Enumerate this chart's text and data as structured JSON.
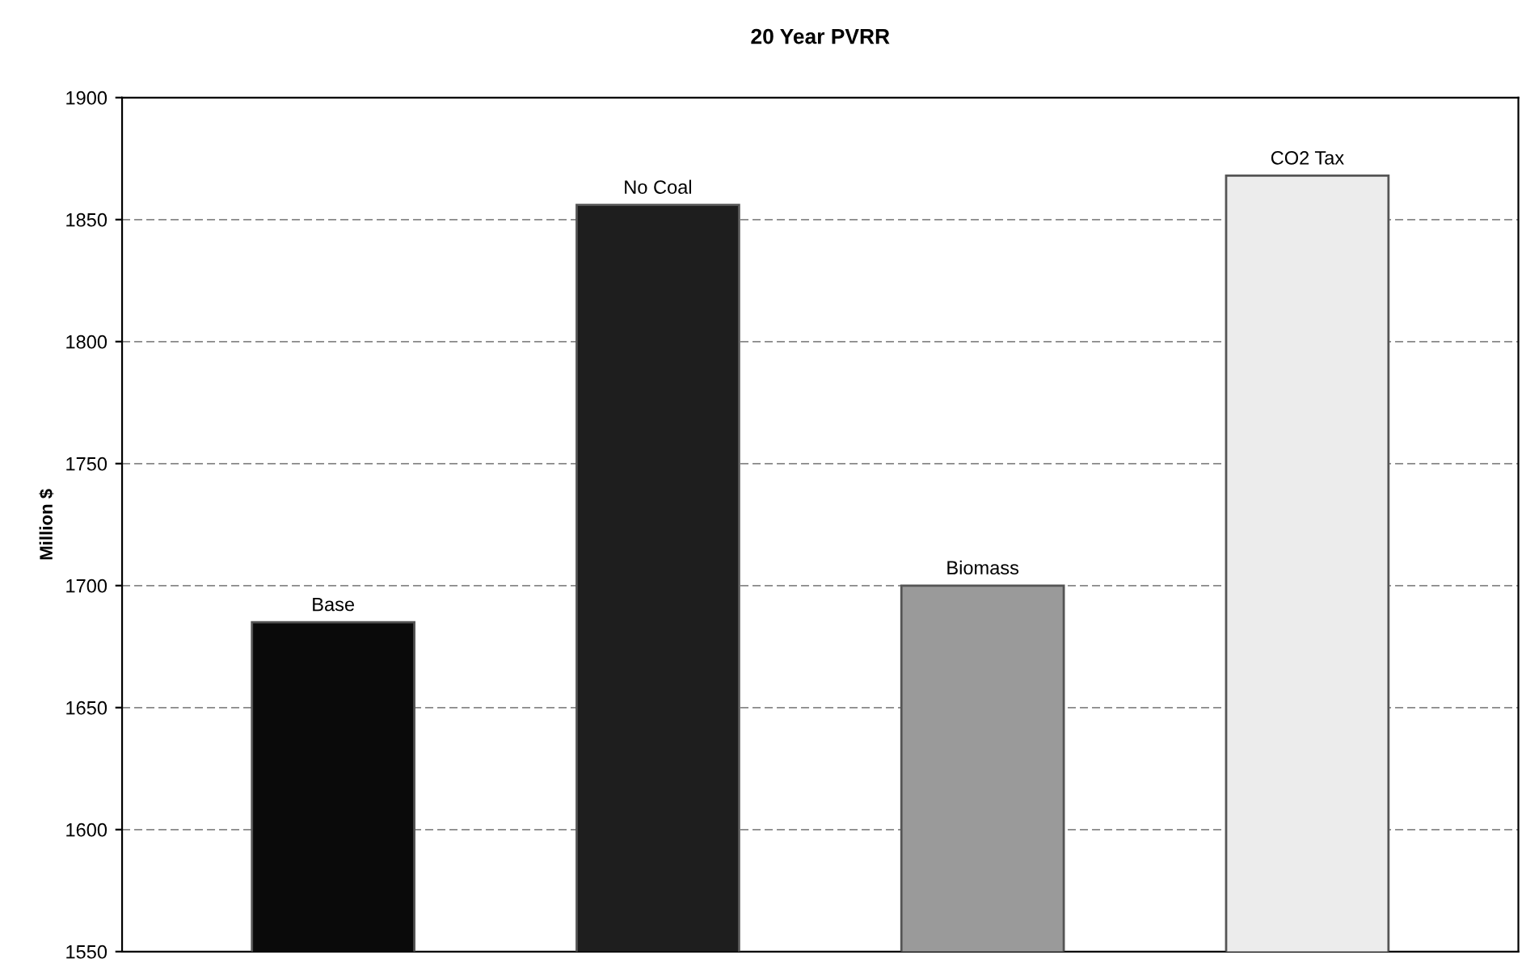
{
  "chart_data": {
    "type": "bar",
    "title": "20 Year PVRR",
    "ylabel": "Million $",
    "categories": [
      "Base",
      "No Coal",
      "Biomass",
      "CO2 Tax"
    ],
    "values": [
      1685,
      1856,
      1700,
      1868
    ],
    "colors": [
      "#0a0a0a",
      "#1e1e1e",
      "#9a9a9a",
      "#ececec"
    ],
    "ylim": [
      1550,
      1900
    ],
    "yticks": [
      1550,
      1600,
      1650,
      1700,
      1750,
      1800,
      1850,
      1900
    ],
    "grid": "y"
  }
}
